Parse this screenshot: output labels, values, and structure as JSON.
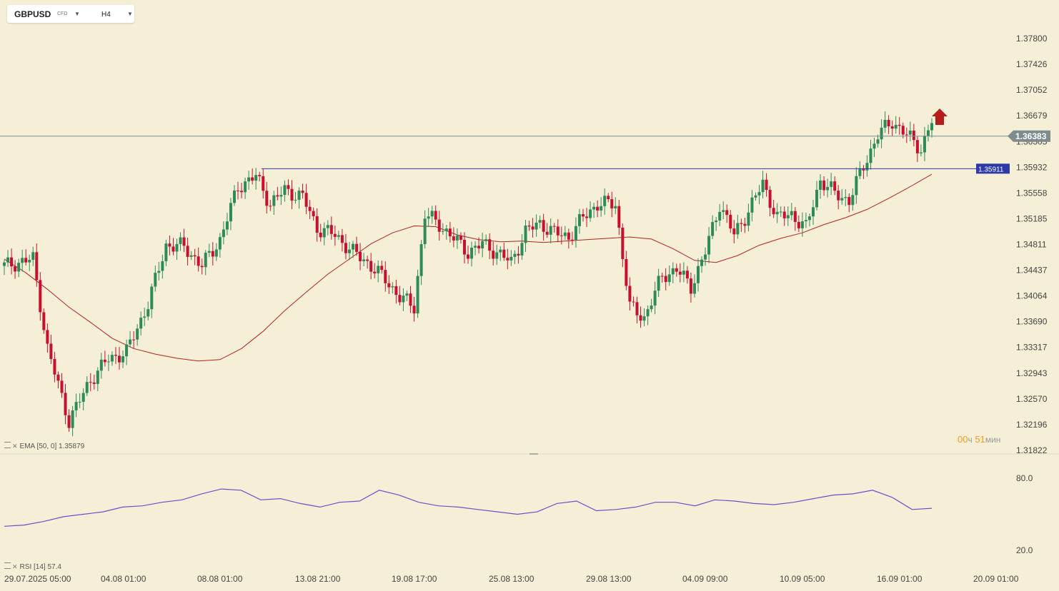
{
  "toolbar": {
    "symbol": "GBPUSD",
    "symbol_type": "CFD",
    "timeframe": "H4",
    "symbol_dropdown_icon": "caret-down-icon",
    "timeframe_dropdown_icon": "caret-down-icon"
  },
  "indicators": {
    "ema_label": "EMA [50, 0]",
    "ema_value": "1.35879",
    "rsi_label": "RSI [14]",
    "rsi_value": "57.4"
  },
  "timer": {
    "hours": "00",
    "hours_unit": "ч",
    "minutes": "51",
    "minutes_unit": "мин"
  },
  "colors": {
    "background": "#f4efd6",
    "bull": "#2e8b57",
    "bear": "#c8102e",
    "ema": "#b22222",
    "rsi": "#6a4fc9",
    "price_line": "#7f8c8d",
    "level_line": "#2d3aa8",
    "level_label_bg": "#2d3aa8",
    "current_label_bg": "#7f8c8d",
    "arrow": "#b71c1c"
  },
  "chart_data": {
    "type": "candlestick",
    "title": "",
    "y_ticks": [
      "1.37800",
      "1.37426",
      "1.37052",
      "1.36679",
      "1.36305",
      "1.35932",
      "1.35558",
      "1.35185",
      "1.34811",
      "1.34437",
      "1.34064",
      "1.33690",
      "1.33317",
      "1.32943",
      "1.32570",
      "1.32196",
      "1.31822"
    ],
    "ylim": [
      1.31822,
      1.378
    ],
    "x_ticks": [
      "29.07.2025 05:00",
      "04.08 01:00",
      "08.08 01:00",
      "13.08 21:00",
      "19.08 17:00",
      "25.08 13:00",
      "29.08 13:00",
      "04.09 09:00",
      "10.09 05:00",
      "16.09 01:00",
      "20.09 01:00"
    ],
    "current_price": "1.36383",
    "level_price": "1.35911",
    "rsi_ticks": [
      "80.0",
      "20.0"
    ],
    "rsi_range": [
      20,
      80
    ],
    "signal": "up-arrow",
    "ema_points": [
      1.346,
      1.344,
      1.3416,
      1.339,
      1.3368,
      1.3345,
      1.333,
      1.3322,
      1.3316,
      1.3312,
      1.3314,
      1.333,
      1.3355,
      1.3385,
      1.3412,
      1.3438,
      1.346,
      1.3482,
      1.3498,
      1.3508,
      1.3507,
      1.3495,
      1.3488,
      1.3485,
      1.3486,
      1.3484,
      1.3486,
      1.3488,
      1.349,
      1.3492,
      1.3489,
      1.3475,
      1.3458,
      1.3455,
      1.3465,
      1.348,
      1.349,
      1.3498,
      1.351,
      1.352,
      1.3532,
      1.3548,
      1.3565,
      1.3583
    ],
    "rsi_points": [
      40,
      41,
      44,
      48,
      50,
      52,
      56,
      57,
      60,
      62,
      67,
      71,
      70,
      62,
      63,
      59,
      56,
      60,
      61,
      70,
      66,
      60,
      57,
      56,
      54,
      52,
      50,
      52,
      59,
      61,
      53,
      54,
      56,
      60,
      60,
      57,
      62,
      61,
      59,
      58,
      60,
      63,
      66,
      67,
      70,
      64,
      54,
      55
    ]
  }
}
